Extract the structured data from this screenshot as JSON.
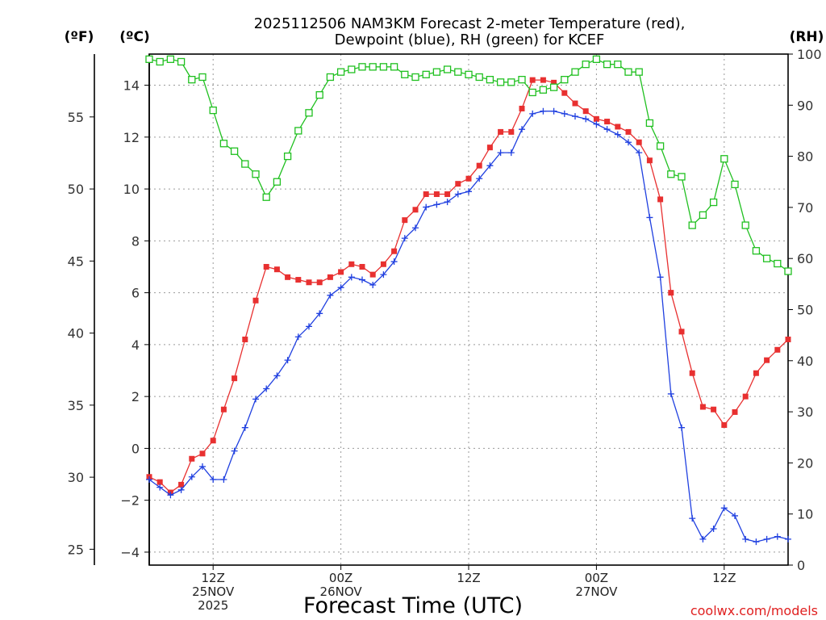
{
  "chart_data": {
    "type": "line",
    "title_line1": "2025112506 NAM3KM Forecast 2-meter Temperature (red),",
    "title_line2": "Dewpoint (blue), RH (green) for KCEF",
    "xlabel": "Forecast Time (UTC)",
    "credit": "coolwx.com/models",
    "units": {
      "left_outer": "(ºF)",
      "left_inner": "(ºC)",
      "right": "(RH)"
    },
    "x_hours_range": [
      6,
      66
    ],
    "celsius_range": [
      -4.5,
      15.2
    ],
    "fahrenheit_ticks": [
      "25",
      "30",
      "35",
      "40",
      "45",
      "50",
      "55"
    ],
    "celsius_ticks": [
      "−4",
      "−2",
      "0",
      "2",
      "4",
      "6",
      "8",
      "10",
      "12",
      "14"
    ],
    "rh_range": [
      0,
      100
    ],
    "rh_ticks": [
      "0",
      "10",
      "20",
      "30",
      "40",
      "50",
      "60",
      "70",
      "80",
      "90",
      "100"
    ],
    "x_ticks": [
      {
        "hour": 12,
        "lines": [
          "12Z",
          "25NOV",
          "2025"
        ]
      },
      {
        "hour": 24,
        "lines": [
          "00Z",
          "26NOV"
        ]
      },
      {
        "hour": 36,
        "lines": [
          "12Z"
        ]
      },
      {
        "hour": 48,
        "lines": [
          "00Z",
          "27NOV"
        ]
      },
      {
        "hour": 60,
        "lines": [
          "12Z"
        ]
      }
    ],
    "series": [
      {
        "name": "Temperature (°C)",
        "color": "#e83030",
        "marker": "filled-square",
        "axis": "celsius",
        "x": [
          6,
          7,
          8,
          9,
          10,
          11,
          12,
          13,
          14,
          15,
          16,
          17,
          18,
          19,
          20,
          21,
          22,
          23,
          24,
          25,
          26,
          27,
          28,
          29,
          30,
          31,
          32,
          33,
          34,
          35,
          36,
          37,
          38,
          39,
          40,
          41,
          42,
          43,
          44,
          45,
          46,
          47,
          48,
          49,
          50,
          51,
          52,
          53,
          54,
          55,
          56,
          57,
          58,
          59,
          60,
          61,
          62,
          63,
          64,
          65,
          66
        ],
        "values": [
          -1.1,
          -1.3,
          -1.7,
          -1.4,
          -0.4,
          -0.2,
          0.3,
          1.5,
          2.7,
          4.2,
          5.7,
          7.0,
          6.9,
          6.6,
          6.5,
          6.4,
          6.4,
          6.6,
          6.8,
          7.1,
          7.0,
          6.7,
          7.1,
          7.6,
          8.8,
          9.2,
          9.8,
          9.8,
          9.8,
          10.2,
          10.4,
          10.9,
          11.6,
          12.2,
          12.2,
          13.1,
          14.2,
          14.2,
          14.1,
          13.7,
          13.3,
          13.0,
          12.7,
          12.6,
          12.4,
          12.2,
          11.8,
          11.1,
          9.6,
          6.0,
          4.5,
          2.9,
          1.6,
          1.5,
          0.9,
          1.4,
          2.0,
          2.9,
          3.4,
          3.8,
          4.2
        ]
      },
      {
        "name": "Dewpoint (°C)",
        "color": "#2040e0",
        "marker": "plus",
        "axis": "celsius",
        "x": [
          6,
          7,
          8,
          9,
          10,
          11,
          12,
          13,
          14,
          15,
          16,
          17,
          18,
          19,
          20,
          21,
          22,
          23,
          24,
          25,
          26,
          27,
          28,
          29,
          30,
          31,
          32,
          33,
          34,
          35,
          36,
          37,
          38,
          39,
          40,
          41,
          42,
          43,
          44,
          45,
          46,
          47,
          48,
          49,
          50,
          51,
          52,
          53,
          54,
          55,
          56,
          57,
          58,
          59,
          60,
          61,
          62,
          63,
          64,
          65,
          66
        ],
        "values": [
          -1.2,
          -1.5,
          -1.8,
          -1.6,
          -1.1,
          -0.7,
          -1.2,
          -1.2,
          -0.1,
          0.8,
          1.9,
          2.3,
          2.8,
          3.4,
          4.3,
          4.7,
          5.2,
          5.9,
          6.2,
          6.6,
          6.5,
          6.3,
          6.7,
          7.2,
          8.1,
          8.5,
          9.3,
          9.4,
          9.5,
          9.8,
          9.9,
          10.4,
          10.9,
          11.4,
          11.4,
          12.3,
          12.9,
          13.0,
          13.0,
          12.9,
          12.8,
          12.7,
          12.5,
          12.3,
          12.1,
          11.8,
          11.4,
          8.9,
          6.6,
          2.1,
          0.8,
          -2.7,
          -3.5,
          -3.1,
          -2.3,
          -2.6,
          -3.5,
          -3.6,
          -3.5,
          -3.4,
          -3.5
        ]
      },
      {
        "name": "RH (%)",
        "color": "#20c020",
        "marker": "open-square",
        "axis": "rh",
        "x": [
          6,
          7,
          8,
          9,
          10,
          11,
          12,
          13,
          14,
          15,
          16,
          17,
          18,
          19,
          20,
          21,
          22,
          23,
          24,
          25,
          26,
          27,
          28,
          29,
          30,
          31,
          32,
          33,
          34,
          35,
          36,
          37,
          38,
          39,
          40,
          41,
          42,
          43,
          44,
          45,
          46,
          47,
          48,
          49,
          50,
          51,
          52,
          53,
          54,
          55,
          56,
          57,
          58,
          59,
          60,
          61,
          62,
          63,
          64,
          65,
          66
        ],
        "values": [
          99,
          98.5,
          99,
          98.5,
          95,
          95.5,
          89,
          82.5,
          81,
          78.5,
          76.5,
          72,
          75,
          80,
          85,
          88.5,
          92,
          95.5,
          96.5,
          97,
          97.5,
          97.5,
          97.5,
          97.5,
          96,
          95.5,
          96,
          96.5,
          97,
          96.5,
          96,
          95.5,
          95,
          94.5,
          94.5,
          95,
          92.5,
          93,
          93.5,
          95,
          96.5,
          98,
          99,
          98,
          98,
          96.5,
          96.5,
          86.5,
          82,
          76.5,
          76,
          66.5,
          68.5,
          71,
          79.5,
          74.5,
          66.5,
          61.5,
          60,
          59,
          57.5
        ]
      }
    ]
  }
}
